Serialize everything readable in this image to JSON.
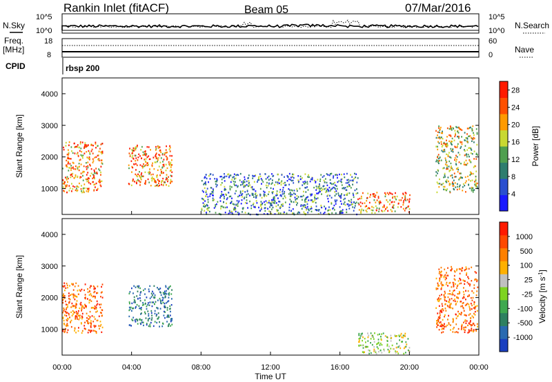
{
  "header": {
    "station": "Rankin Inlet (fitACF)",
    "beam": "Beam 05",
    "date": "07/Mar/2016"
  },
  "panels": {
    "noise": {
      "left_label": "N.Sky",
      "right_label": "N.Search",
      "left_ticks": [
        "10^5",
        "10^0"
      ],
      "right_ticks": [
        "10^5",
        "10^0"
      ]
    },
    "freq": {
      "left_label_1": "Freq.",
      "left_label_2": "[MHz]",
      "right_label": "Nave",
      "left_ticks": [
        "18",
        "8"
      ],
      "right_ticks": [
        "60",
        "0"
      ]
    },
    "cpid": {
      "label": "CPID",
      "value": "rbsp 200"
    }
  },
  "chart_data": [
    {
      "type": "heatmap",
      "title": "",
      "xlabel": "",
      "ylabel": "Slant Range [km]",
      "xlim": [
        0,
        24
      ],
      "ylim": [
        180,
        4500
      ],
      "y_ticks": [
        "1000",
        "2000",
        "3000",
        "4000"
      ],
      "colorbar": {
        "label": "Power [dB]",
        "ticks": [
          "4",
          "8",
          "12",
          "16",
          "20",
          "24",
          "28"
        ],
        "range": [
          0,
          30
        ],
        "colors": [
          "#1a1aff",
          "#2a4fcf",
          "#2e7d6e",
          "#4f9f4f",
          "#c8d832",
          "#ff9a00",
          "#ff5000",
          "#ff1a00"
        ]
      },
      "echo_regions": [
        {
          "t0": 0.0,
          "t1": 2.3,
          "r0": 900,
          "r1": 2500,
          "level": "high"
        },
        {
          "t0": 3.8,
          "t1": 6.3,
          "r0": 1100,
          "r1": 2400,
          "level": "high"
        },
        {
          "t0": 17.0,
          "t1": 20.0,
          "r0": 250,
          "r1": 900,
          "level": "high"
        },
        {
          "t0": 21.5,
          "t1": 23.9,
          "r0": 900,
          "r1": 3000,
          "level": "mid"
        },
        {
          "t0": 8.0,
          "t1": 17.0,
          "r0": 200,
          "r1": 1500,
          "level": "low"
        }
      ]
    },
    {
      "type": "heatmap",
      "title": "",
      "xlabel": "Time UT",
      "ylabel": "Slant Range [km]",
      "xlim": [
        0,
        24
      ],
      "ylim": [
        180,
        4500
      ],
      "x_ticks": [
        "00:00",
        "04:00",
        "08:00",
        "12:00",
        "16:00",
        "20:00",
        "00:00"
      ],
      "y_ticks": [
        "1000",
        "2000",
        "3000",
        "4000"
      ],
      "colorbar": {
        "label": "Velocity [m s",
        "label_sup": "-1",
        "label_end": "]",
        "ticks": [
          "1000",
          "500",
          "100",
          "25",
          "-25",
          "-100",
          "-500",
          "-1000"
        ],
        "colors": [
          "#1a3fbf",
          "#2a6ab0",
          "#2e8060",
          "#3fa84f",
          "#7ed321",
          "#c0c0c0",
          "#ffb000",
          "#ff8000",
          "#ff4a00",
          "#ff1a00"
        ]
      },
      "echo_regions": [
        {
          "t0": 0.0,
          "t1": 2.3,
          "r0": 900,
          "r1": 2500,
          "velocity": "away"
        },
        {
          "t0": 3.8,
          "t1": 6.3,
          "r0": 1100,
          "r1": 2400,
          "velocity": "toward"
        },
        {
          "t0": 17.0,
          "t1": 20.0,
          "r0": 250,
          "r1": 900,
          "velocity": "mixed"
        },
        {
          "t0": 21.5,
          "t1": 23.9,
          "r0": 900,
          "r1": 3000,
          "velocity": "away"
        }
      ]
    }
  ]
}
